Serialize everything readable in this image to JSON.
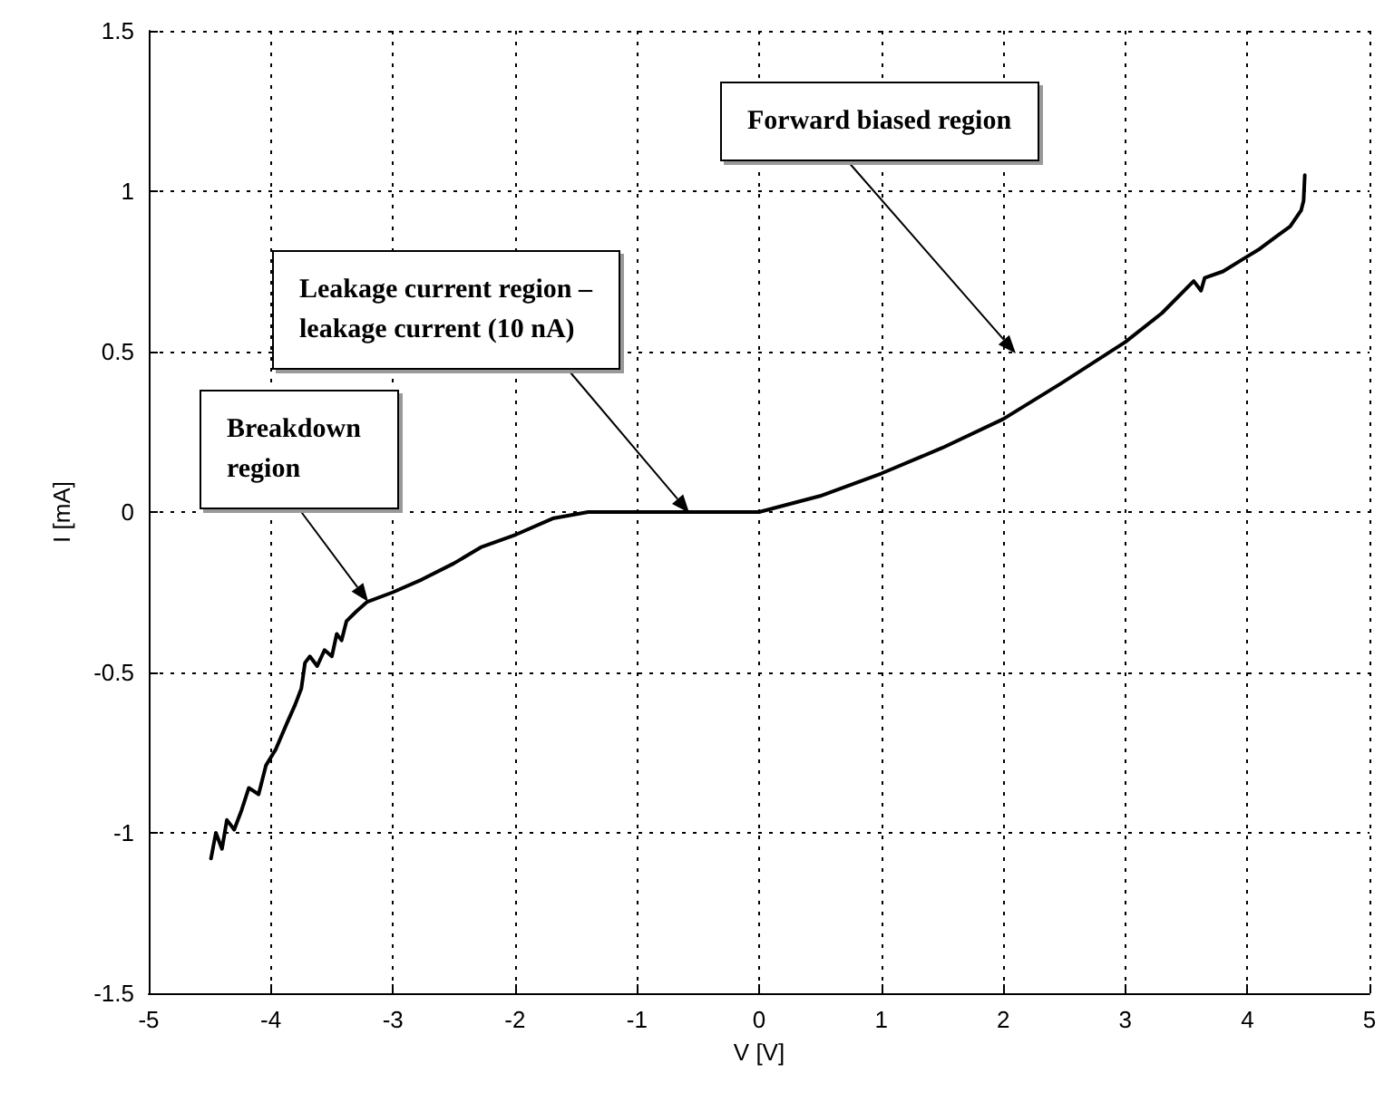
{
  "chart_data": {
    "type": "line",
    "xlabel": "V [V]",
    "ylabel": "I [mA]",
    "x": [
      -4.49,
      -4.45,
      -4.4,
      -4.36,
      -4.3,
      -4.24,
      -4.18,
      -4.1,
      -4.04,
      -3.96,
      -3.87,
      -3.8,
      -3.75,
      -3.72,
      -3.68,
      -3.62,
      -3.56,
      -3.5,
      -3.46,
      -3.42,
      -3.38,
      -3.3,
      -3.21,
      -3.0,
      -2.76,
      -2.5,
      -2.28,
      -1.99,
      -1.69,
      -1.4,
      -1.0,
      -0.5,
      0,
      0.5,
      1,
      1.5,
      2,
      2.47,
      3,
      3.3,
      3.56,
      3.62,
      3.65,
      3.8,
      3.97,
      4.1,
      4.24,
      4.35,
      4.44,
      4.46,
      4.47
    ],
    "series": [
      {
        "color": "#000000",
        "values": [
          -1.08,
          -1.0,
          -1.05,
          -0.96,
          -0.99,
          -0.93,
          -0.86,
          -0.88,
          -0.79,
          -0.74,
          -0.66,
          -0.6,
          -0.55,
          -0.47,
          -0.45,
          -0.48,
          -0.43,
          -0.45,
          -0.38,
          -0.4,
          -0.34,
          -0.31,
          -0.28,
          -0.25,
          -0.21,
          -0.16,
          -0.11,
          -0.07,
          -0.02,
          0,
          0,
          0,
          0,
          0.05,
          0.12,
          0.2,
          0.29,
          0.4,
          0.53,
          0.62,
          0.72,
          0.69,
          0.73,
          0.75,
          0.79,
          0.82,
          0.86,
          0.89,
          0.94,
          0.97,
          1.05
        ]
      }
    ],
    "xlim": [
      -5,
      5
    ],
    "xticks": [
      -5,
      -4,
      -3,
      -2,
      -1,
      0,
      1,
      2,
      3,
      4,
      5
    ],
    "ylim": [
      -1.5,
      1.5
    ],
    "yticks": [
      -1.5,
      -1,
      -0.5,
      0,
      0.5,
      1,
      1.5
    ],
    "grid": true,
    "marker": "none",
    "line_style": "solid",
    "annotations": [
      "Breakdown region",
      "Leakage current region –\nleakage current (10 nA)",
      "Forward biased region"
    ]
  }
}
